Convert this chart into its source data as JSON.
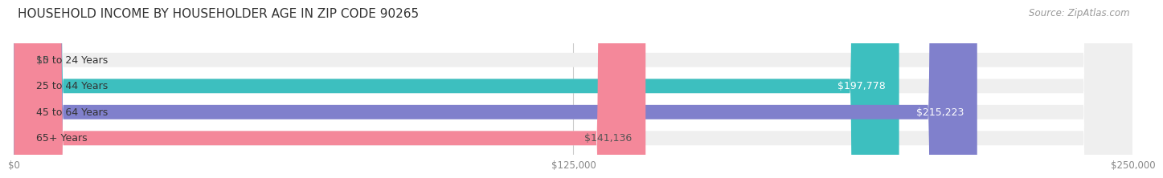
{
  "title": "HOUSEHOLD INCOME BY HOUSEHOLDER AGE IN ZIP CODE 90265",
  "source": "Source: ZipAtlas.com",
  "categories": [
    "15 to 24 Years",
    "25 to 44 Years",
    "45 to 64 Years",
    "65+ Years"
  ],
  "values": [
    0,
    197778,
    215223,
    141136
  ],
  "bar_colors": [
    "#c9b8d8",
    "#3dbfbf",
    "#8080cc",
    "#f4889a"
  ],
  "bar_bg_color": "#efefef",
  "label_colors": [
    "#555555",
    "#ffffff",
    "#ffffff",
    "#555555"
  ],
  "xlim": [
    0,
    250000
  ],
  "xticks": [
    0,
    125000,
    250000
  ],
  "xtick_labels": [
    "$0",
    "$125,000",
    "$250,000"
  ],
  "background_color": "#ffffff",
  "title_fontsize": 11,
  "source_fontsize": 8.5,
  "bar_label_fontsize": 9,
  "category_fontsize": 9,
  "bar_height": 0.55,
  "value_labels": [
    "$0",
    "$197,778",
    "$215,223",
    "$141,136"
  ]
}
